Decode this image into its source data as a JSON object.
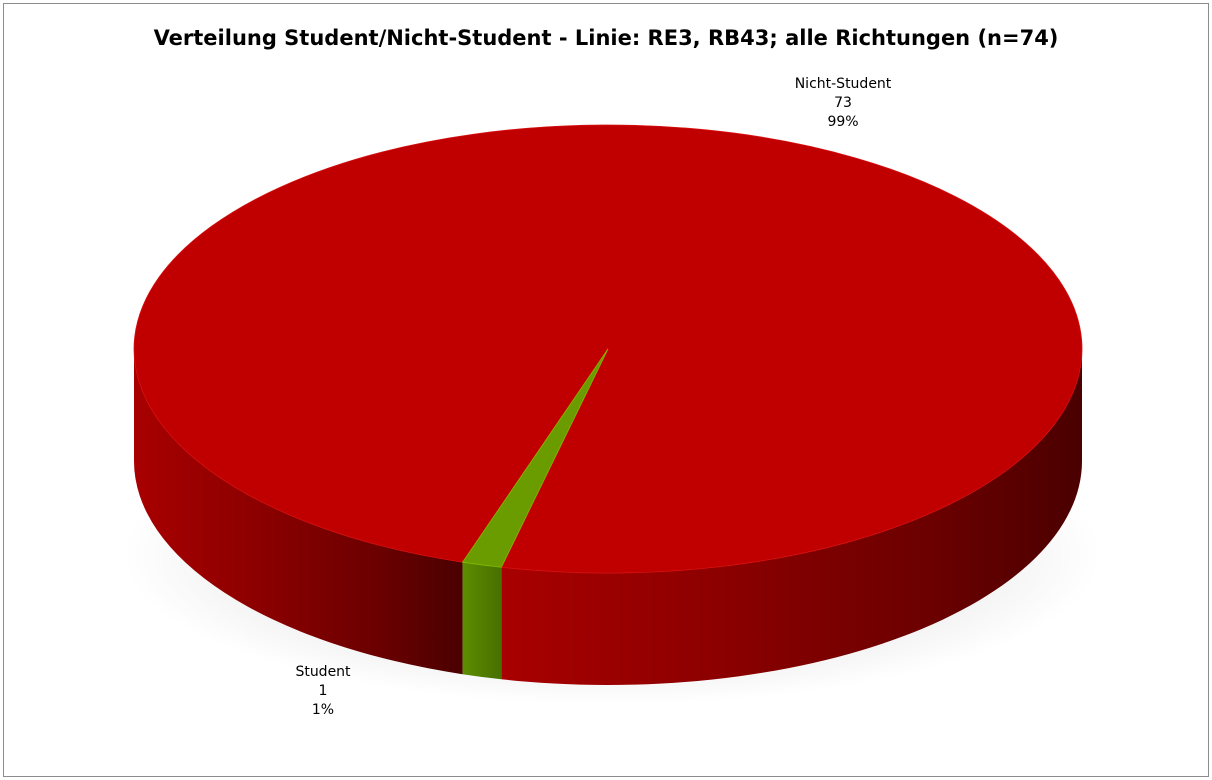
{
  "chart_data": {
    "type": "pie",
    "style": "3d-pie",
    "title": "Verteilung Student/Nicht-Student - Linie: RE3, RB43; alle Richtungen (n=74)",
    "slices": [
      {
        "name": "Nicht-Student",
        "value": 73,
        "percent": "99%",
        "color": "#c00000",
        "value_label": "73"
      },
      {
        "name": "Student",
        "value": 1,
        "percent": "1%",
        "color": "#6a9c00",
        "value_label": "1"
      }
    ],
    "legend": "none",
    "data_labels": "outside"
  }
}
